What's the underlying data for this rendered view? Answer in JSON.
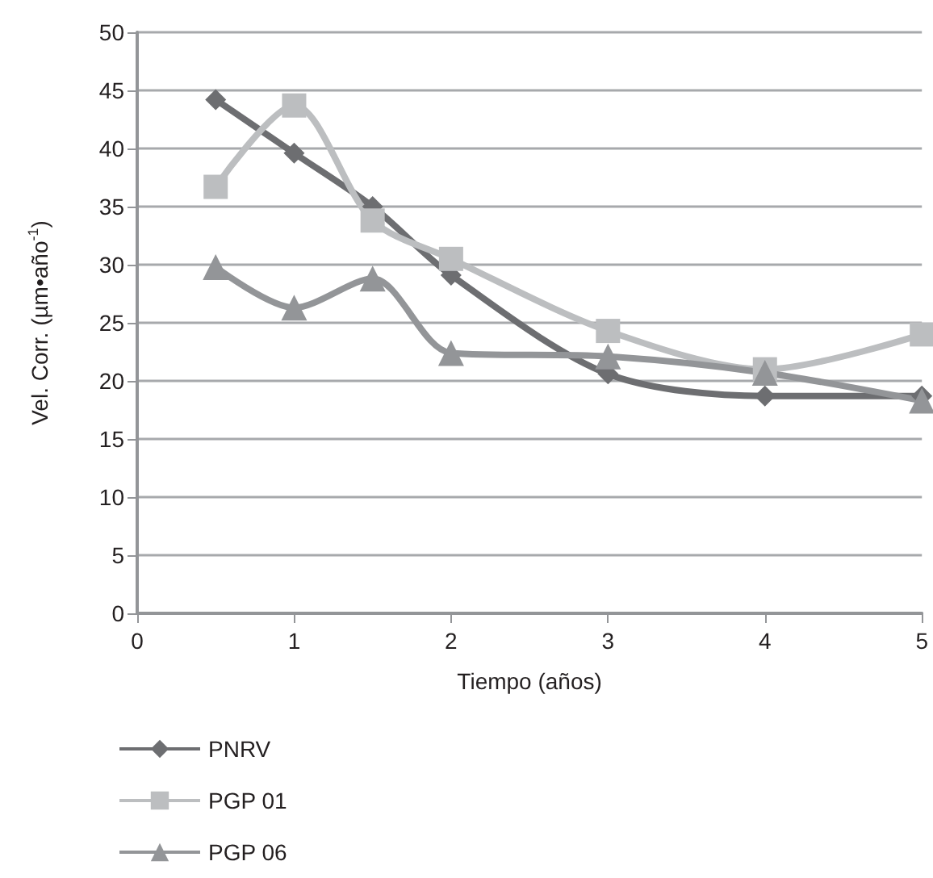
{
  "chart_data": {
    "type": "line",
    "xlabel": "Tiempo (años)",
    "ylabel": "Vel. Corr. (µm•año$^{-1}$)",
    "x": [
      0.5,
      1,
      1.5,
      2,
      3,
      4,
      5
    ],
    "xlim": [
      0,
      5
    ],
    "xticks": [
      0,
      1,
      2,
      3,
      4,
      5
    ],
    "ylim": [
      0,
      50
    ],
    "yticks": [
      0,
      5,
      10,
      15,
      20,
      25,
      30,
      35,
      40,
      45,
      50
    ],
    "grid": "y",
    "legend": "bottom left",
    "series": [
      {
        "name": "PNRV",
        "color": "#6d6e71",
        "marker": "diamond",
        "values": [
          44.2,
          39.6,
          35,
          29.1,
          20.6,
          18.7,
          18.7
        ]
      },
      {
        "name": "PGP 01",
        "color": "#bcbec0",
        "marker": "square",
        "values": [
          36.7,
          43.7,
          33.8,
          30.5,
          24.3,
          21,
          24
        ]
      },
      {
        "name": "PGP 06",
        "color": "#939598",
        "marker": "triangle",
        "values": [
          29.8,
          26.3,
          28.8,
          22.4,
          22.1,
          20.7,
          18.3
        ]
      }
    ]
  }
}
